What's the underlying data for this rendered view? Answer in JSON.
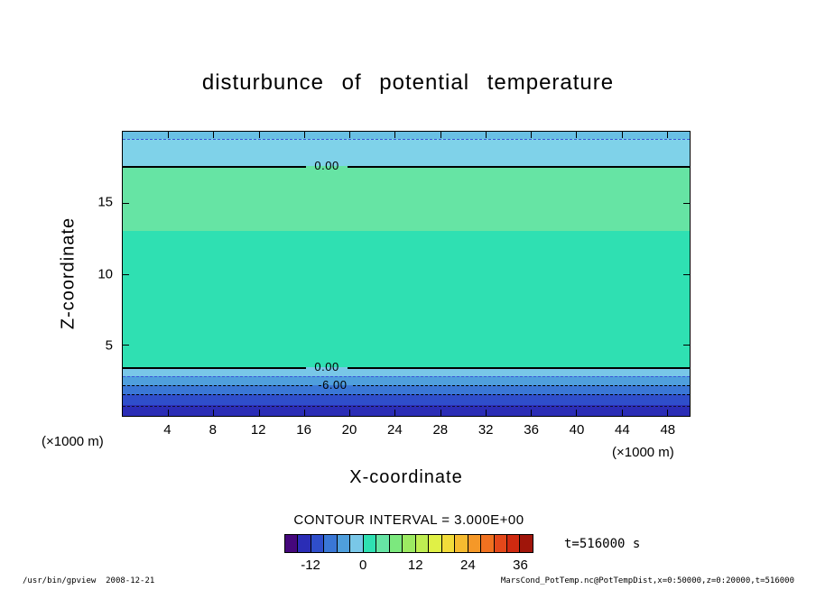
{
  "chart_data": {
    "type": "heatmap",
    "subtype": "filled-contour",
    "title": "disturbunce of potential temperature",
    "xlabel": "X-coordinate",
    "ylabel": "Z-coordinate",
    "x_units": "(×1000 m)",
    "x_range": [
      0,
      50
    ],
    "z_range": [
      0,
      20
    ],
    "x_ticks": [
      4,
      8,
      12,
      16,
      20,
      24,
      28,
      32,
      36,
      40,
      44,
      48
    ],
    "z_ticks": [
      5,
      10,
      15
    ],
    "grid": false,
    "contour_interval": 3.0,
    "contour_interval_label": "CONTOUR INTERVAL = 3.000E+00",
    "time_label": "t=516000 s",
    "bands": [
      {
        "z_from": 0.0,
        "z_to": 0.75,
        "value": "-15 to -12",
        "color": "#2b2db6"
      },
      {
        "z_from": 0.75,
        "z_to": 1.5,
        "value": "-12 to -9",
        "color": "#2f4ecb"
      },
      {
        "z_from": 1.5,
        "z_to": 2.15,
        "value": "-9 to -6",
        "color": "#3a77d6"
      },
      {
        "z_from": 2.15,
        "z_to": 2.8,
        "value": "-6 to -3",
        "color": "#4f9fdd"
      },
      {
        "z_from": 2.8,
        "z_to": 3.45,
        "value": "-3 to 0",
        "color": "#79c7e8"
      },
      {
        "z_from": 3.45,
        "z_to": 13.0,
        "value": "0 to 3",
        "color": "#2fe0b2"
      },
      {
        "z_from": 13.0,
        "z_to": 17.6,
        "value": "3 to 6",
        "color": "#66e4a4"
      },
      {
        "z_from": 17.6,
        "z_to": 19.5,
        "value": "-3 to 0",
        "color": "#7fd2e9"
      },
      {
        "z_from": 19.5,
        "z_to": 20.0,
        "value": "-6 to -3",
        "color": "#69c0e4"
      }
    ],
    "contour_lines": [
      {
        "z": 19.5,
        "style": "dashed",
        "color": "#3a55d8",
        "label": null,
        "label_x": 0
      },
      {
        "z": 17.6,
        "style": "solid",
        "color": "#000000",
        "label": "0.00",
        "label_x": 36
      },
      {
        "z": 3.45,
        "style": "solid",
        "color": "#000000",
        "label": "0.00",
        "label_x": 36
      },
      {
        "z": 2.8,
        "style": "dashed",
        "color": "#3a55d8",
        "label": null,
        "label_x": 0
      },
      {
        "z": 2.15,
        "style": "dashed",
        "color": "#000000",
        "label": "-6.00",
        "label_x": 37
      },
      {
        "z": 1.5,
        "style": "dashed",
        "color": "#000000",
        "label": null,
        "label_x": 0
      },
      {
        "z": 0.72,
        "style": "dashed",
        "color": "#111133",
        "label": null,
        "label_x": 0
      }
    ],
    "colorbar": {
      "range": [
        -18,
        39
      ],
      "ticks": [
        -12,
        0,
        12,
        24,
        36
      ],
      "cell_colors": [
        "#45077c",
        "#2b2db6",
        "#2f4ecb",
        "#3a77d6",
        "#4f9fdd",
        "#79c7e8",
        "#2fe0b2",
        "#66e4a4",
        "#7ce87e",
        "#9cea62",
        "#bfee52",
        "#e0f046",
        "#f2dc3a",
        "#f6bb30",
        "#f59828",
        "#f07120",
        "#e4481a",
        "#cf2a10",
        "#a0150a"
      ]
    }
  },
  "footer": {
    "left": "/usr/bin/gpview  2008-12-21",
    "right": "MarsCond_PotTemp.nc@PotTempDist,x=0:50000,z=0:20000,t=516000"
  }
}
